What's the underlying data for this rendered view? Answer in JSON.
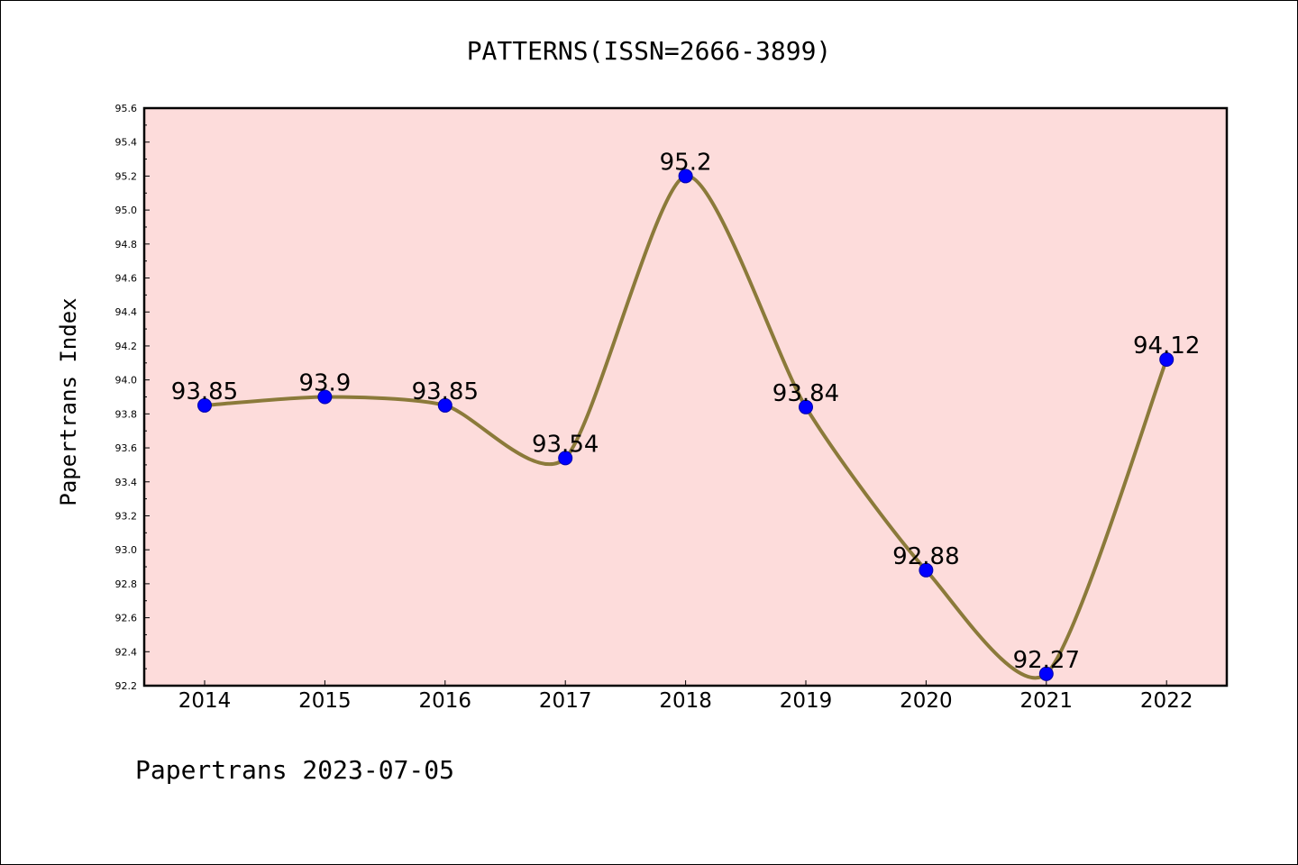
{
  "chart_data": {
    "type": "line",
    "title": "PATTERNS(ISSN=2666-3899)",
    "ylabel": "Papertrans Index",
    "xlabel": "",
    "categories": [
      "2014",
      "2015",
      "2016",
      "2017",
      "2018",
      "2019",
      "2020",
      "2021",
      "2022"
    ],
    "values": [
      93.85,
      93.9,
      93.85,
      93.54,
      95.2,
      93.84,
      92.88,
      92.27,
      94.12
    ],
    "data_labels": [
      "93.85",
      "93.9",
      "93.85",
      "93.54",
      "95.2",
      "93.84",
      "92.88",
      "92.27",
      "94.12"
    ],
    "ylim": [
      92.2,
      95.6
    ],
    "yticks": [
      "92.2",
      "92.4",
      "92.6",
      "92.8",
      "93.0",
      "93.2",
      "93.4",
      "93.6",
      "93.8",
      "94.0",
      "94.2",
      "94.4",
      "94.6",
      "94.8",
      "95.0",
      "95.2",
      "95.4",
      "95.6"
    ],
    "grid": false,
    "colors": {
      "plot_background": "#fddcdb",
      "line": "#8b7a3a",
      "marker": "#0000ff"
    }
  },
  "footer": "Papertrans 2023-07-05"
}
